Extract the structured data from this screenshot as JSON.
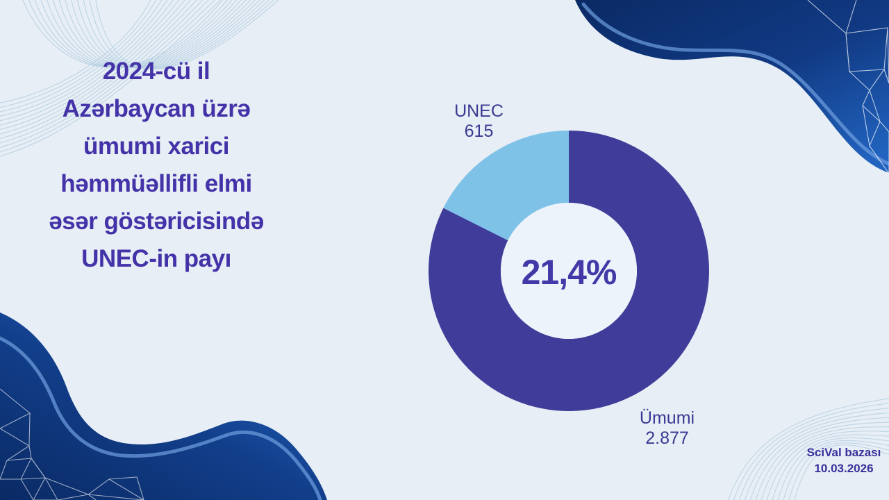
{
  "page": {
    "background_color": "#E7EEF5"
  },
  "title": {
    "text": "2024-cü il Azərbaycan üzrə ümumi xarici həmmüəllifli elmi əsər göstəricisində UNEC-in payı",
    "lines": [
      "2024-cü il",
      "Azərbaycan üzrə",
      "ümumi xarici",
      "həmmüəllifli elmi",
      "əsər göstəricisində",
      "UNEC-in payı"
    ],
    "color": "#4433A8"
  },
  "chart_data": {
    "type": "pie",
    "subtype": "donut",
    "start_angle_deg": 0,
    "direction": "clockwise",
    "legend_position": "none",
    "labels_outside": true,
    "slices": [
      {
        "label": "Ümumi",
        "value": 2877,
        "display_value": "2.877",
        "color": "#403C99"
      },
      {
        "label": "UNEC",
        "value": 615,
        "display_value": "615",
        "color": "#7FC2E8"
      }
    ],
    "center_label": "21,4%",
    "center_label_color": "#4437A8",
    "slice_label_color": "#3A3A92",
    "hole_color": "#EDF3FA"
  },
  "source": {
    "line1": "SciVal bazası",
    "line2": "10.03.2026",
    "color": "#3A2F9B"
  },
  "colors": {
    "wave_dark_navy": "#0B2B66",
    "wave_bright_blue": "#1F5FBA",
    "wave_streak": "#6FA0E0",
    "thin_line_accent": "#92BBD4",
    "mesh_line": "#FFFFFF"
  }
}
